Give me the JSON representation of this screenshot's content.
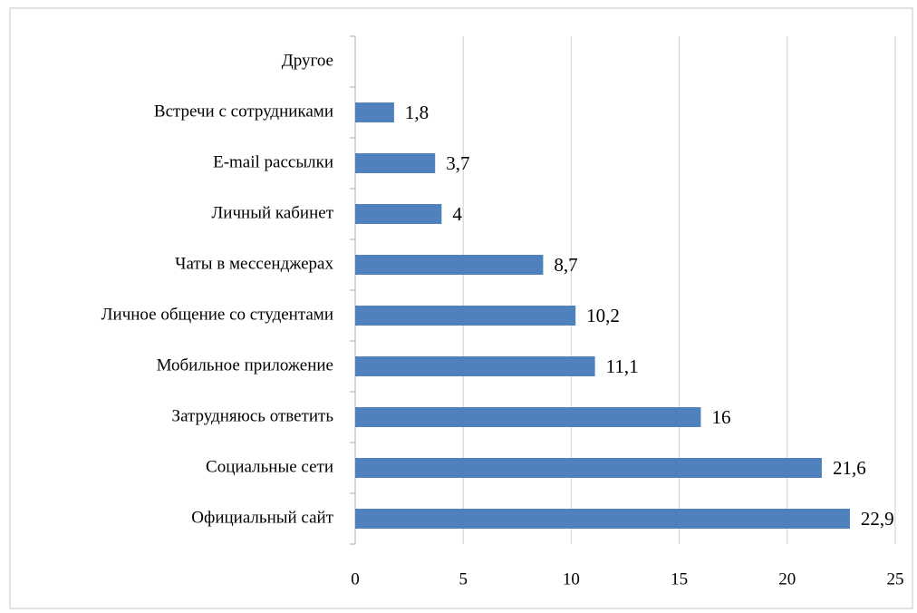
{
  "chart_data": {
    "type": "hbar",
    "categories": [
      "Другое",
      "Встречи с сотрудниками",
      "E-mail рассылки",
      "Личный кабинет",
      "Чаты в мессенджерах",
      "Личное общение со студентами",
      "Мобильное приложение",
      "Затрудняюсь ответить",
      "Социальные сети",
      "Официальный сайт"
    ],
    "values": [
      null,
      1.8,
      3.7,
      4,
      8.7,
      10.2,
      11.1,
      16,
      21.6,
      22.9
    ],
    "value_labels": [
      null,
      "1,8",
      "3,7",
      "4",
      "8,7",
      "10,2",
      "11,1",
      "16",
      "21,6",
      "22,9"
    ],
    "color": "#4f81bd",
    "xlim": [
      0,
      25
    ],
    "xticks": [
      0,
      5,
      10,
      15,
      20,
      25
    ],
    "grid": true
  }
}
